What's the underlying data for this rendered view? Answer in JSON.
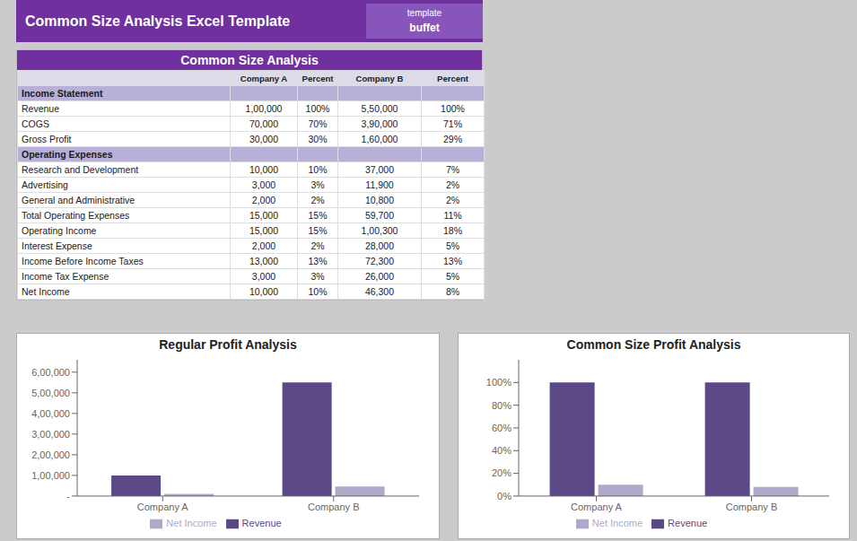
{
  "title": "Common Size Analysis Excel Template",
  "annotations": [
    "template",
    "buffet"
  ],
  "chart_data": [
    {
      "type": "table",
      "title": "Common Size Analysis",
      "categories": [
        "Income Statement",
        "Revenue",
        "COGS",
        "Gross Profit",
        "Operating Expenses",
        "Research and Development",
        "Advertising",
        "General and Administrative",
        "Total Operating Expenses",
        "Operating Income",
        "Interest Expense",
        "Income Before Income Taxes",
        "Income Tax Expense",
        "Net Income"
      ],
      "series": [
        {
          "name": "Company A",
          "values": [
            null,
            100000,
            70000,
            30000,
            null,
            10000,
            3000,
            2000,
            15000,
            15000,
            2000,
            13000,
            3000,
            10000
          ],
          "value_labels": [
            null,
            "1,00,000",
            "70,000",
            "30,000",
            null,
            "10,000",
            "3,000",
            "2,000",
            "15,000",
            "15,000",
            "2,000",
            "13,000",
            "3,000",
            "10,000"
          ]
        },
        {
          "name": "Percent",
          "values": [
            null,
            100,
            70,
            30,
            null,
            10,
            3,
            2,
            15,
            15,
            2,
            13,
            3,
            10
          ],
          "value_labels": [
            null,
            "100%",
            "70%",
            "30%",
            null,
            "10%",
            "3%",
            "2%",
            "15%",
            "15%",
            "2%",
            "13%",
            "3%",
            "10%"
          ]
        },
        {
          "name": "Company B",
          "values": [
            null,
            550000,
            390000,
            160000,
            null,
            37000,
            11900,
            10800,
            59700,
            100300,
            28000,
            72300,
            26000,
            46300
          ],
          "value_labels": [
            null,
            "5,50,000",
            "3,90,000",
            "1,60,000",
            null,
            "37,000",
            "11,900",
            "10,800",
            "59,700",
            "1,00,300",
            "28,000",
            "72,300",
            "26,000",
            "46,300"
          ]
        },
        {
          "name": "Percent",
          "values": [
            null,
            100,
            71,
            29,
            null,
            7,
            2,
            2,
            11,
            18,
            5,
            13,
            5,
            8
          ],
          "value_labels": [
            null,
            "100%",
            "71%",
            "29%",
            null,
            "7%",
            "2%",
            "2%",
            "11%",
            "18%",
            "5%",
            "13%",
            "5%",
            "8%"
          ]
        }
      ]
    },
    {
      "type": "bar",
      "title": "Regular Profit Analysis",
      "categories": [
        "Company A",
        "Company B"
      ],
      "series": [
        {
          "name": "Revenue",
          "color": "#5B4886",
          "values": [
            100000,
            550000
          ]
        },
        {
          "name": "Net Income",
          "color": "#B0A8C8",
          "values": [
            10000,
            46300
          ]
        }
      ],
      "ylim": [
        0,
        660000
      ],
      "yticks": [
        {
          "value": 0,
          "label": "-"
        },
        {
          "value": 100000,
          "label": "1,00,000"
        },
        {
          "value": 200000,
          "label": "2,00,000"
        },
        {
          "value": 300000,
          "label": "3,00,000"
        },
        {
          "value": 400000,
          "label": "4,00,000"
        },
        {
          "value": 500000,
          "label": "5,00,000"
        },
        {
          "value": 600000,
          "label": "6,00,000"
        }
      ],
      "grid": false,
      "legend": "bottom"
    },
    {
      "type": "bar",
      "title": "Common Size Profit Analysis",
      "categories": [
        "Company A",
        "Company B"
      ],
      "series": [
        {
          "name": "Revenue",
          "color": "#5B4886",
          "values": [
            100,
            100
          ]
        },
        {
          "name": "Net Income",
          "color": "#B0A8C8",
          "values": [
            10,
            8
          ]
        }
      ],
      "ylim": [
        0,
        120
      ],
      "yticks": [
        {
          "value": 0,
          "label": "0%"
        },
        {
          "value": 20,
          "label": "20%"
        },
        {
          "value": 40,
          "label": "40%"
        },
        {
          "value": 60,
          "label": "60%"
        },
        {
          "value": 80,
          "label": "80%"
        },
        {
          "value": 100,
          "label": "100%"
        }
      ],
      "grid": false,
      "legend": "bottom"
    }
  ]
}
